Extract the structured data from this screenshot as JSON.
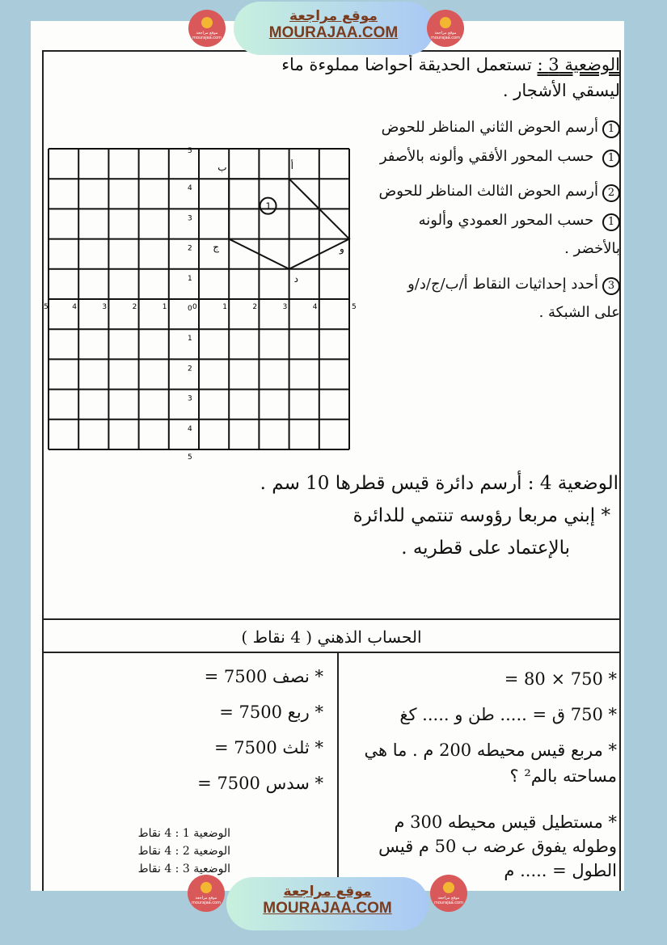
{
  "banner": {
    "site_ar": "موقع مراجعة",
    "site_en": "MOURAJAA.COM",
    "logo_caption": "موقع مراجعة mourajaa.com"
  },
  "section3": {
    "title": "الوضعية 3 :",
    "text": "تستعمل الحديقة أحواضا مملوءة ماء ليسقي الأشجار .",
    "items": [
      {
        "num": "1",
        "text_a": "أرسم الحوض الثاني المناظر للحوض",
        "ref": "1",
        "text_b": "حسب المحور الأفقي وألونه بالأصفر"
      },
      {
        "num": "2",
        "text_a": "أرسم الحوض الثالث المناظر للحوض",
        "ref": "1",
        "text_b": "حسب المحور العمودي وألونه بالأخضر ."
      },
      {
        "num": "3",
        "text_a": "أحدد إحداثيات النقاط أ/ب/ج/د/و على الشبكة .",
        "ref": "",
        "text_b": ""
      }
    ]
  },
  "grid": {
    "x_labels": [
      "5",
      "4",
      "3",
      "2",
      "1",
      "0",
      "1",
      "2",
      "3",
      "4",
      "5"
    ],
    "y_labels": [
      "5",
      "4",
      "3",
      "2",
      "1",
      "0",
      "1",
      "2",
      "3",
      "4",
      "5"
    ],
    "shape_label": "1",
    "points": [
      {
        "name": "ب",
        "x": 1,
        "y": 4
      },
      {
        "name": "أ",
        "x": 3,
        "y": 4
      },
      {
        "name": "و",
        "x": 5,
        "y": 2
      },
      {
        "name": "د",
        "x": 3,
        "y": 1
      },
      {
        "name": "ج",
        "x": 1,
        "y": 2
      }
    ]
  },
  "section4": {
    "line1": "الوضعية 4 : أرسم دائرة قيس قطرها 10 سم .",
    "line2": "* إبني مربعا رؤوسه تنتمي للدائرة",
    "line3": "بالإعتماد على قطريه ."
  },
  "mental": {
    "title": "الحساب الذهني ( 4 نقاط )",
    "right": [
      "* 750 × 80 =",
      "* 750 ق = ..... طن و ..... كغ",
      "* مربع قيس محيطه 200 م . ما هي مساحته بالم² ؟",
      "* مستطيل قيس محيطه 300 م وطوله يفوق عرضه ب 50 م قيس الطول = ..... م"
    ],
    "left": [
      "* نصف 7500 =",
      "* ربع 7500 =",
      "* ثلث 7500 =",
      "* سدس 7500 ="
    ],
    "grades": [
      "الوضعية 1 : 4 نقاط",
      "الوضعية 2 : 4 نقاط",
      "الوضعية 3 : 4 نقاط"
    ]
  }
}
